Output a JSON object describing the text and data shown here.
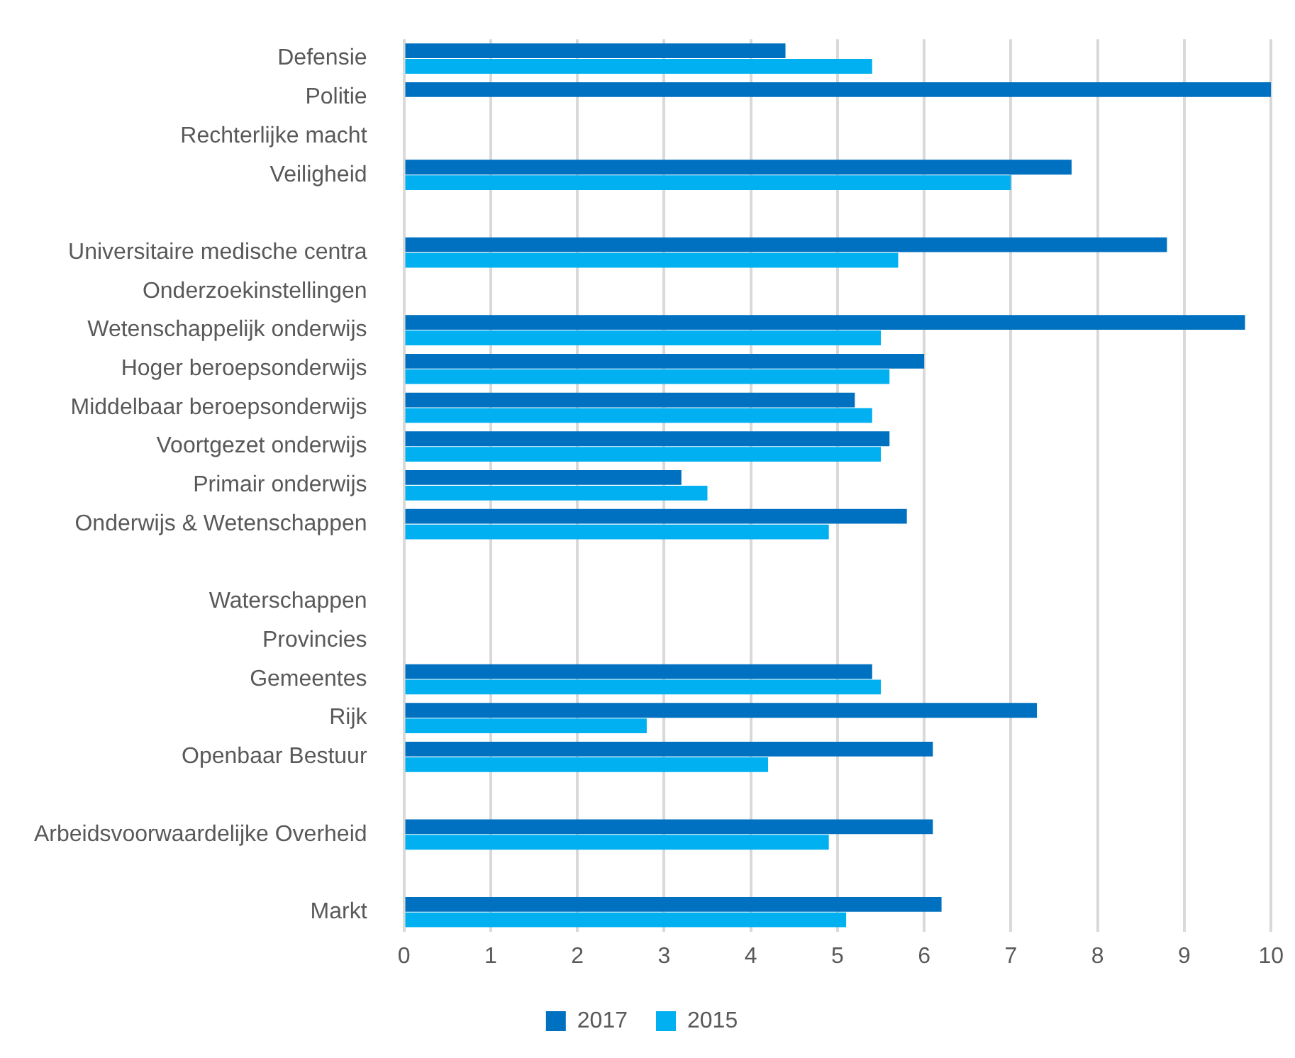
{
  "chart_data": {
    "type": "bar",
    "orientation": "horizontal",
    "categories": [
      "Defensie",
      "Politie",
      "Rechterlijke macht",
      "Veiligheid",
      null,
      "Universitaire medische centra",
      "Onderzoekinstellingen",
      "Wetenschappelijk onderwijs",
      "Hoger beroepsonderwijs",
      "Middelbaar beroepsonderwijs",
      "Voortgezet onderwijs",
      "Primair onderwijs",
      "Onderwijs & Wetenschappen",
      null,
      "Waterschappen",
      "Provincies",
      "Gemeentes",
      "Rijk",
      "Openbaar Bestuur",
      null,
      "Arbeidsvoorwaardelijke Overheid",
      null,
      "Markt"
    ],
    "series": [
      {
        "name": "2017",
        "color": "#0070c0",
        "values": [
          4.4,
          10,
          null,
          7.7,
          null,
          8.8,
          null,
          9.7,
          6.0,
          5.2,
          5.6,
          3.2,
          5.8,
          null,
          null,
          null,
          5.4,
          7.3,
          6.1,
          null,
          6.1,
          null,
          6.2
        ]
      },
      {
        "name": "2015",
        "color": "#00b0f0",
        "values": [
          5.4,
          null,
          null,
          7.0,
          null,
          5.7,
          null,
          5.5,
          5.6,
          5.4,
          5.5,
          3.5,
          4.9,
          null,
          null,
          null,
          5.5,
          2.8,
          4.2,
          null,
          4.9,
          null,
          5.1
        ]
      }
    ],
    "xlim": [
      0,
      10
    ],
    "xticks": [
      0,
      1,
      2,
      3,
      4,
      5,
      6,
      7,
      8,
      9,
      10
    ],
    "grid": "x",
    "legend": "bottom"
  }
}
